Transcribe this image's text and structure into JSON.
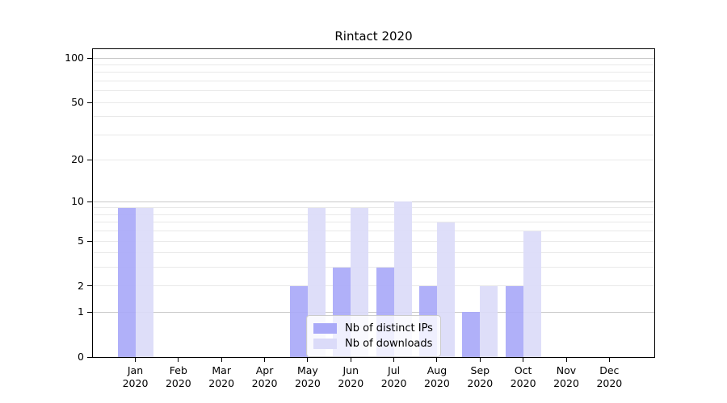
{
  "title": "Rintact 2020",
  "chart_data": {
    "type": "bar",
    "title": "Rintact 2020",
    "categories": [
      "Jan 2020",
      "Feb 2020",
      "Mar 2020",
      "Apr 2020",
      "May 2020",
      "Jun 2020",
      "Jul 2020",
      "Aug 2020",
      "Sep 2020",
      "Oct 2020",
      "Nov 2020",
      "Dec 2020"
    ],
    "series": [
      {
        "name": "Nb of distinct IPs",
        "color": "#a9a9f8",
        "values": [
          9,
          0,
          0,
          0,
          2,
          3,
          3,
          2,
          1,
          2,
          0,
          0
        ]
      },
      {
        "name": "Nb of downloads",
        "color": "#dbdbf9",
        "values": [
          9,
          0,
          0,
          0,
          9,
          9,
          10,
          7,
          2,
          6,
          0,
          0
        ]
      }
    ],
    "yscale": "log1p",
    "ylim": [
      0,
      115
    ],
    "y_ticks": [
      0,
      1,
      2,
      5,
      10,
      20,
      50,
      100
    ],
    "y_minor_gridlines": [
      3,
      4,
      6,
      7,
      8,
      9,
      30,
      40,
      60,
      70,
      80,
      90
    ],
    "grid": "horizontal",
    "legend_position": "bottom-center",
    "xlabel": "",
    "ylabel": ""
  },
  "colors": {
    "major_gridline": "#c9c9c9",
    "minor_gridline": "#e9e9e9",
    "axis": "#000000",
    "legend_border": "#cccccc"
  }
}
